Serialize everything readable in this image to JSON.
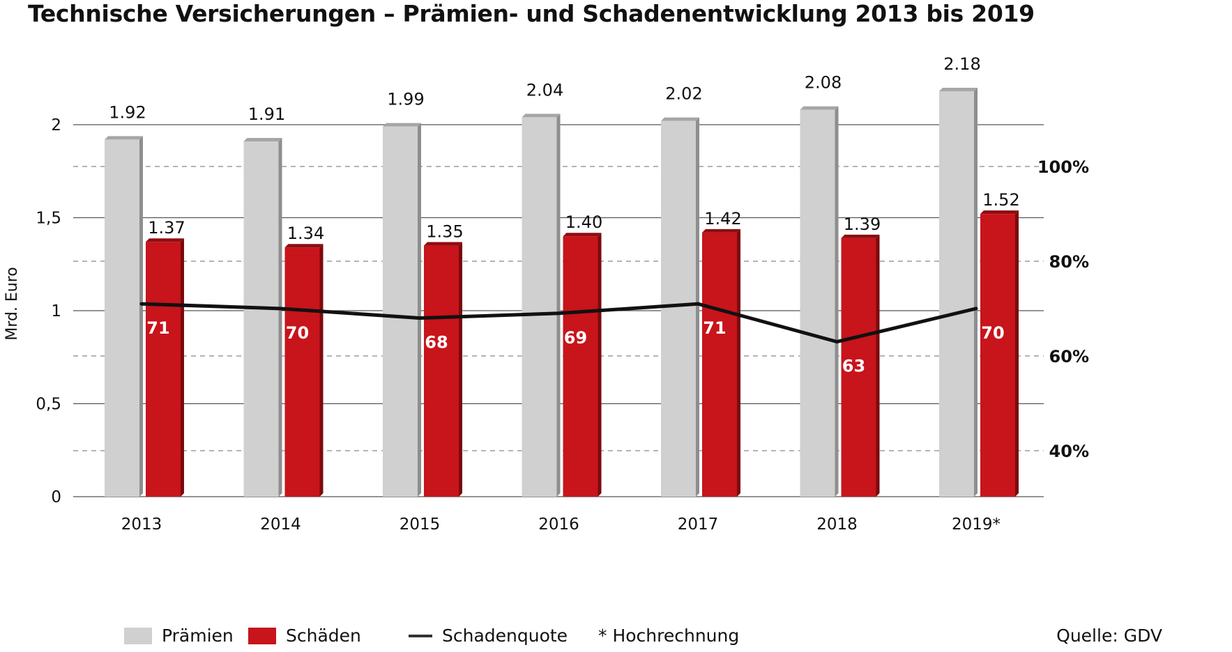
{
  "title": "Technische Versicherungen – Prämien- und Schadenentwicklung 2013 bis 2019",
  "source": "Quelle: GDV",
  "legend": {
    "premiums": "Prämien",
    "claims": "Schäden",
    "ratio": "Schadenquote",
    "note": "* Hochrechnung"
  },
  "colors": {
    "premiums": "#d0d0d0",
    "claims": "#c8141b",
    "ratio": "#111111",
    "grid": "#555555"
  },
  "chart_data": {
    "type": "bar",
    "categories": [
      "2013",
      "2014",
      "2015",
      "2016",
      "2017",
      "2018",
      "2019*"
    ],
    "series": [
      {
        "name": "Prämien",
        "values": [
          1.92,
          1.91,
          1.99,
          2.04,
          2.02,
          2.08,
          2.18
        ]
      },
      {
        "name": "Schäden",
        "values": [
          1.37,
          1.34,
          1.35,
          1.4,
          1.42,
          1.39,
          1.52
        ]
      }
    ],
    "ratio_series": {
      "name": "Schadenquote",
      "type": "line",
      "axis": "right",
      "values": [
        71,
        70,
        68,
        69,
        71,
        63,
        70
      ]
    },
    "ylabel": "Mrd. Euro",
    "ylim": [
      0,
      2.25
    ],
    "y_ticks": [
      "0",
      "0,5",
      "1",
      "1,5",
      "2"
    ],
    "y_tick_values": [
      0,
      0.5,
      1,
      1.5,
      2
    ],
    "y2lim": [
      30,
      120
    ],
    "y2_ticks": [
      "40%",
      "60%",
      "80%",
      "100%"
    ],
    "y2_tick_values": [
      40,
      60,
      80,
      100
    ],
    "grid": true,
    "legend_position": "bottom"
  }
}
